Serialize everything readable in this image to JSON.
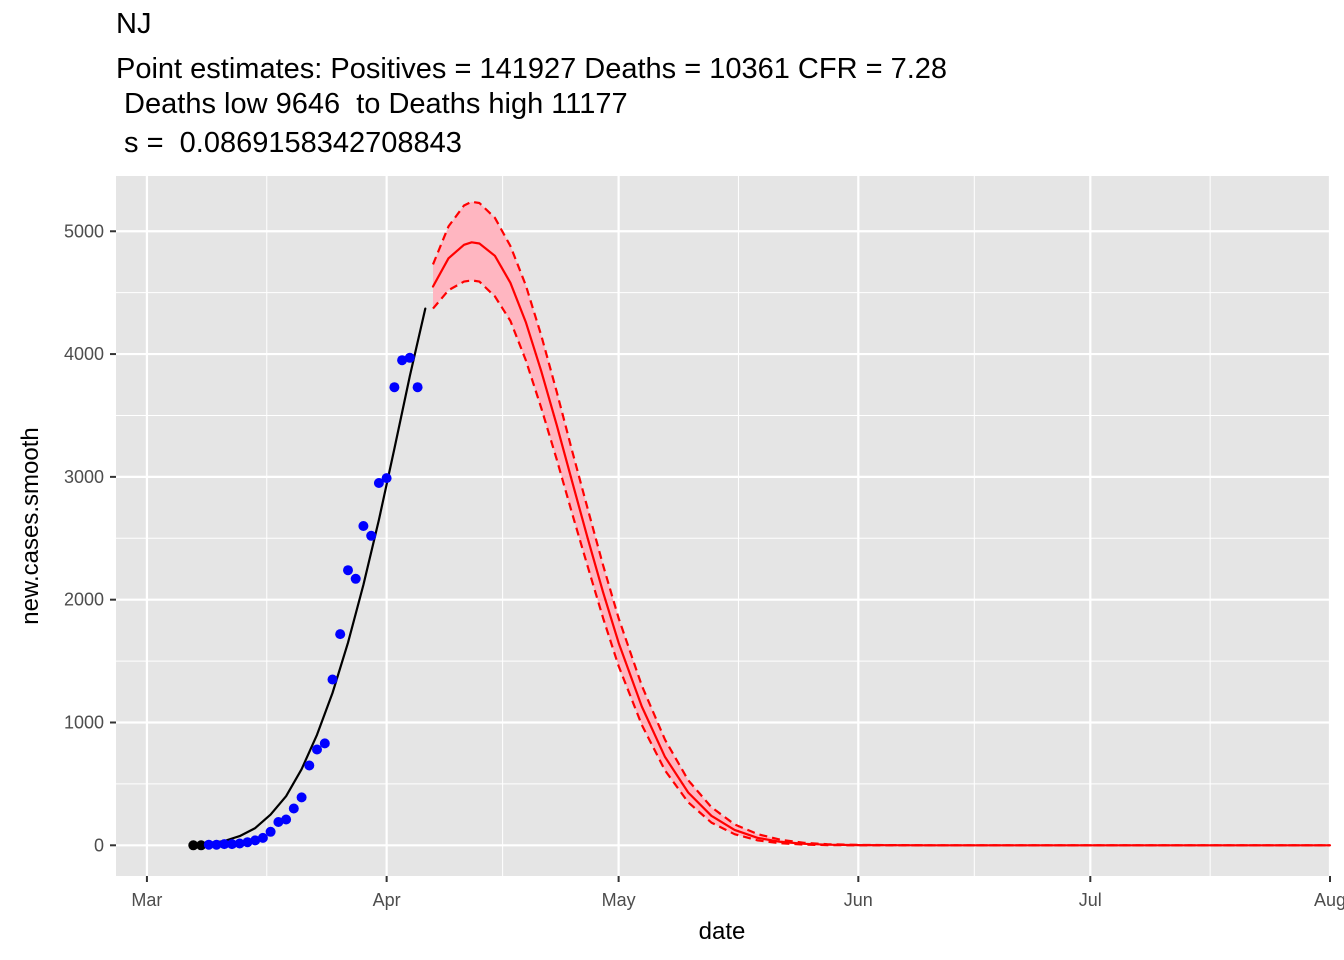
{
  "chart_data": {
    "type": "line",
    "title_lines": [
      "NJ",
      "Point estimates: Positives = 141927 Deaths = 10361 CFR = 7.28",
      " Deaths low 9646  to Deaths high 11177",
      " s =  0.0869158342708843"
    ],
    "xlabel": "date",
    "ylabel": "new.cases.smooth",
    "x_axis": {
      "type": "date",
      "range": [
        "2020-02-26",
        "2020-08-01"
      ],
      "ticks": [
        {
          "date": "2020-03-01",
          "label": "Mar"
        },
        {
          "date": "2020-04-01",
          "label": "Apr"
        },
        {
          "date": "2020-05-01",
          "label": "May"
        },
        {
          "date": "2020-06-01",
          "label": "Jun"
        },
        {
          "date": "2020-07-01",
          "label": "Jul"
        },
        {
          "date": "2020-08-01",
          "label": "Aug"
        }
      ]
    },
    "y_axis": {
      "range": [
        -250,
        5450
      ],
      "ticks": [
        0,
        1000,
        2000,
        3000,
        4000,
        5000
      ]
    },
    "grid": true,
    "colors": {
      "panel": "#e5e5e5",
      "grid_major": "#ffffff",
      "observed_points": "#0000ff",
      "early_points": "#000000",
      "fit_line": "#000000",
      "projection_line": "#ff0000",
      "ribbon": "#ffb6c1"
    },
    "series": [
      {
        "kind": "points",
        "color": "#000000",
        "x": [
          "2020-03-07",
          "2020-03-08"
        ],
        "y": [
          0,
          0
        ]
      },
      {
        "kind": "points",
        "color": "#0000ff",
        "x": [
          "2020-03-09",
          "2020-03-10",
          "2020-03-11",
          "2020-03-12",
          "2020-03-13",
          "2020-03-14",
          "2020-03-15",
          "2020-03-16",
          "2020-03-17",
          "2020-03-18",
          "2020-03-19",
          "2020-03-20",
          "2020-03-21",
          "2020-03-22",
          "2020-03-23",
          "2020-03-24",
          "2020-03-25",
          "2020-03-26",
          "2020-03-27",
          "2020-03-28",
          "2020-03-29",
          "2020-03-30",
          "2020-03-31",
          "2020-04-01",
          "2020-04-02",
          "2020-04-03",
          "2020-04-04",
          "2020-04-05"
        ],
        "y": [
          5,
          5,
          10,
          10,
          15,
          25,
          40,
          60,
          110,
          190,
          210,
          300,
          390,
          650,
          780,
          830,
          1350,
          1720,
          2240,
          2170,
          2600,
          2520,
          2950,
          2990,
          3730,
          3950,
          3970,
          3730
        ]
      },
      {
        "kind": "line",
        "color": "#000000",
        "x": [
          "2020-03-07",
          "2020-03-09",
          "2020-03-11",
          "2020-03-13",
          "2020-03-15",
          "2020-03-17",
          "2020-03-19",
          "2020-03-21",
          "2020-03-23",
          "2020-03-25",
          "2020-03-27",
          "2020-03-29",
          "2020-03-31",
          "2020-04-02",
          "2020-04-04",
          "2020-04-06"
        ],
        "y": [
          5,
          15,
          35,
          75,
          140,
          250,
          400,
          620,
          900,
          1240,
          1650,
          2120,
          2650,
          3230,
          3820,
          4370
        ]
      },
      {
        "kind": "line",
        "color": "#ff0000",
        "x": [
          "2020-04-07",
          "2020-04-09",
          "2020-04-11",
          "2020-04-12",
          "2020-04-13",
          "2020-04-15",
          "2020-04-17",
          "2020-04-19",
          "2020-04-21",
          "2020-04-23",
          "2020-04-25",
          "2020-04-27",
          "2020-04-29",
          "2020-05-01",
          "2020-05-04",
          "2020-05-07",
          "2020-05-10",
          "2020-05-13",
          "2020-05-16",
          "2020-05-19",
          "2020-05-22",
          "2020-05-25",
          "2020-05-28",
          "2020-06-01",
          "2020-06-10",
          "2020-06-20",
          "2020-07-01",
          "2020-07-15",
          "2020-08-01"
        ],
        "y": [
          4550,
          4780,
          4890,
          4910,
          4900,
          4800,
          4580,
          4260,
          3860,
          3420,
          2960,
          2500,
          2060,
          1650,
          1130,
          720,
          430,
          240,
          125,
          60,
          28,
          12,
          5,
          2,
          0,
          0,
          0,
          0,
          0
        ]
      },
      {
        "kind": "line",
        "style": "dashed",
        "color": "#ff0000",
        "x": [
          "2020-04-07",
          "2020-04-09",
          "2020-04-11",
          "2020-04-12",
          "2020-04-13",
          "2020-04-15",
          "2020-04-17",
          "2020-04-19",
          "2020-04-21",
          "2020-04-23",
          "2020-04-25",
          "2020-04-27",
          "2020-04-29",
          "2020-05-01",
          "2020-05-04",
          "2020-05-07",
          "2020-05-10",
          "2020-05-13",
          "2020-05-16",
          "2020-05-19",
          "2020-05-22",
          "2020-05-25",
          "2020-05-28",
          "2020-06-01",
          "2020-06-10",
          "2020-06-20",
          "2020-07-01",
          "2020-07-15",
          "2020-08-01"
        ],
        "y": [
          4730,
          5040,
          5210,
          5240,
          5230,
          5110,
          4880,
          4560,
          4150,
          3690,
          3210,
          2740,
          2280,
          1850,
          1300,
          860,
          530,
          310,
          170,
          90,
          45,
          20,
          9,
          3,
          0,
          0,
          0,
          0,
          0
        ]
      },
      {
        "kind": "line",
        "style": "dashed",
        "color": "#ff0000",
        "x": [
          "2020-04-07",
          "2020-04-09",
          "2020-04-11",
          "2020-04-12",
          "2020-04-13",
          "2020-04-15",
          "2020-04-17",
          "2020-04-19",
          "2020-04-21",
          "2020-04-23",
          "2020-04-25",
          "2020-04-27",
          "2020-04-29",
          "2020-05-01",
          "2020-05-04",
          "2020-05-07",
          "2020-05-10",
          "2020-05-13",
          "2020-05-16",
          "2020-05-19",
          "2020-05-22",
          "2020-05-25",
          "2020-05-28",
          "2020-06-01",
          "2020-06-10",
          "2020-06-20",
          "2020-07-01",
          "2020-07-15",
          "2020-08-01"
        ],
        "y": [
          4370,
          4520,
          4590,
          4600,
          4590,
          4470,
          4270,
          3950,
          3560,
          3140,
          2700,
          2270,
          1850,
          1460,
          980,
          610,
          350,
          185,
          90,
          40,
          16,
          6,
          2,
          0,
          0,
          0,
          0,
          0,
          0
        ]
      }
    ]
  }
}
